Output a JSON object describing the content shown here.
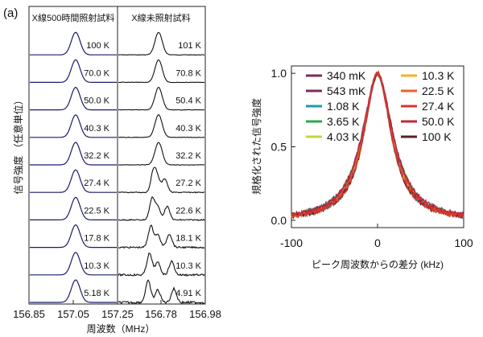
{
  "panel_label": "(a)",
  "chart_data": [
    {
      "type": "line",
      "subplots": [
        {
          "title": "X線500時間照射試料",
          "xlim": [
            156.85,
            157.25
          ],
          "x_ticks": [
            "156.85",
            "157.05",
            "157.25"
          ],
          "temperature_labels": [
            "100 K",
            "70.0 K",
            "50.0 K",
            "40.3 K",
            "32.2 K",
            "27.4 K",
            "22.5 K",
            "17.8 K",
            "10.3 K",
            "5.18 K"
          ],
          "peak_center_mhz": 157.05
        },
        {
          "title": "X線未照射試料",
          "xlim": [
            156.58,
            156.98
          ],
          "x_ticks": [
            "156.78",
            "156.98"
          ],
          "temperature_labels": [
            "101 K",
            "70.8 K",
            "50.4 K",
            "40.3 K",
            "32.2 K",
            "27.2 K",
            "22.6 K",
            "18.1 K",
            "10.3 K",
            "4.91 K"
          ],
          "peak_center_mhz": 156.78
        }
      ],
      "x_tick_left_edge": "156.85",
      "xlabel": "周波数（MHz）",
      "ylabel": "信号強度 （任意単位）"
    },
    {
      "type": "line",
      "xlim": [
        -100,
        100
      ],
      "ylim": [
        -0.05,
        1.05
      ],
      "x_ticks": [
        "-100",
        "0",
        "100"
      ],
      "y_ticks": [
        "0.0",
        "0.5",
        "1.0"
      ],
      "xlabel": "ピーク周波数からの差分 (kHz)",
      "ylabel": "規格化された信号強度",
      "legend_position": "top",
      "series": [
        {
          "name": "340 mK",
          "color": "#7b2d5c"
        },
        {
          "name": "543 mK",
          "color": "#7b2d5c"
        },
        {
          "name": "1.08 K",
          "color": "#1e9bb0"
        },
        {
          "name": "3.65 K",
          "color": "#2aa84a"
        },
        {
          "name": "4.03 K",
          "color": "#c4d63a"
        },
        {
          "name": "10.3 K",
          "color": "#f0b323"
        },
        {
          "name": "22.5 K",
          "color": "#e8612c"
        },
        {
          "name": "27.4 K",
          "color": "#d8342f"
        },
        {
          "name": "50.0 K",
          "color": "#c0283a"
        },
        {
          "name": "100 K",
          "color": "#5a1f28"
        }
      ]
    }
  ]
}
